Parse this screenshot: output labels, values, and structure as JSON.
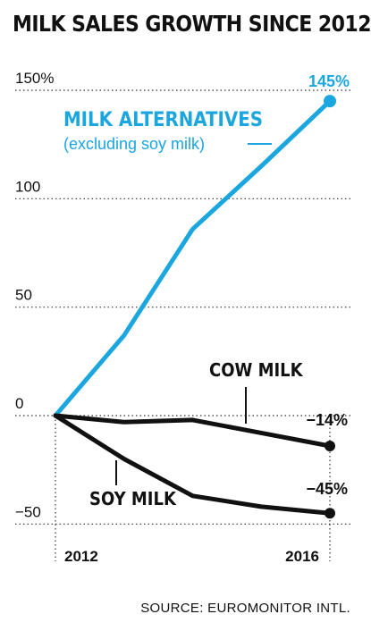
{
  "chart_data": {
    "type": "line",
    "title": "MILK SALES GROWTH SINCE 2012",
    "x": [
      2012,
      2013,
      2014,
      2015,
      2016
    ],
    "x_tick_labels": [
      "2012",
      "2016"
    ],
    "y_ticks": [
      150,
      100,
      50,
      0,
      -50
    ],
    "y_tick_labels": [
      "150%",
      "100",
      "50",
      "0",
      "−50"
    ],
    "ylim": [
      -55,
      155
    ],
    "grid": "horizontal dotted",
    "series": [
      {
        "name": "MILK ALTERNATIVES",
        "subtitle": "(excluding soy milk)",
        "values": [
          0,
          37,
          86,
          115,
          145
        ],
        "end_label": "145%",
        "color": "#1ba6df"
      },
      {
        "name": "COW MILK",
        "values": [
          0,
          -3,
          -2,
          -8,
          -14
        ],
        "end_label": "−14%",
        "color": "#111111"
      },
      {
        "name": "SOY MILK",
        "values": [
          0,
          -20,
          -37,
          -42,
          -45
        ],
        "end_label": "−45%",
        "color": "#111111"
      }
    ],
    "source": "SOURCE: EUROMONITOR INTL."
  }
}
